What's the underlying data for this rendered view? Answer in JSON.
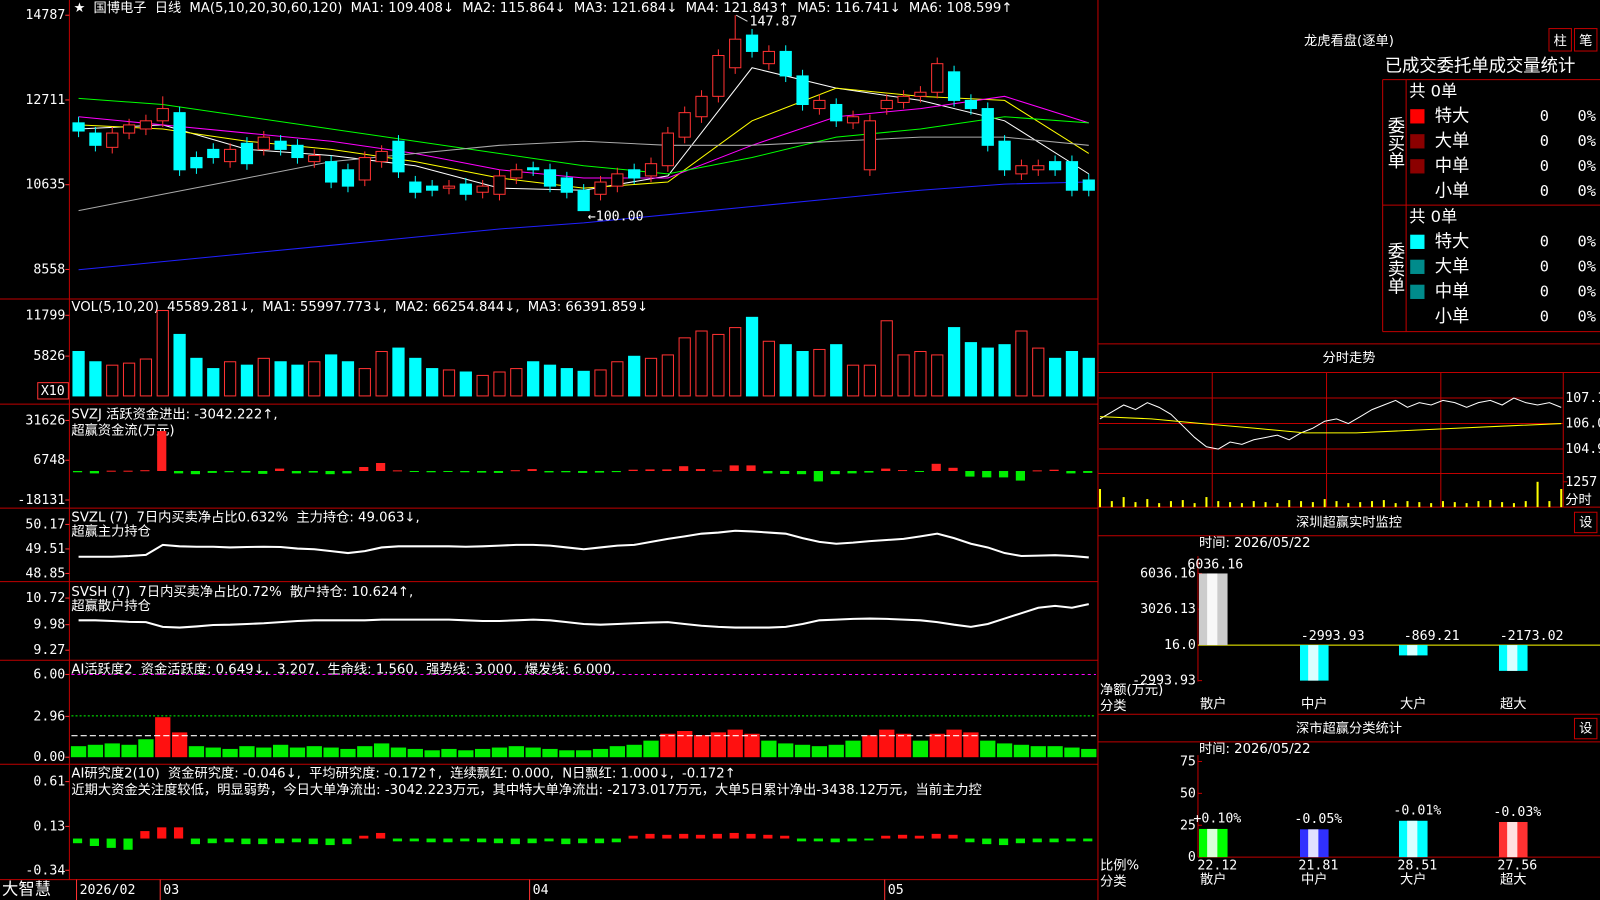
{
  "header": {
    "items": [
      {
        "text": "★",
        "color": "#ffffff"
      },
      {
        "text": "国博电子",
        "color": "#ffffff"
      },
      {
        "text": "日线",
        "color": "#ff3232"
      },
      {
        "text": "MA(5,10,20,30,60,120)",
        "color": "#ffffff"
      },
      {
        "text": "MA1: 109.408↓",
        "color": "#ffffff"
      },
      {
        "text": "MA2: 115.864↓",
        "color": "#ffff00"
      },
      {
        "text": "MA3: 121.684↓",
        "color": "#ff00ff"
      },
      {
        "text": "MA4: 121.843↑",
        "color": "#00ff00"
      },
      {
        "text": "MA5: 116.741↓",
        "color": "#dddddd"
      },
      {
        "text": "MA6: 108.599↑",
        "color": "#3030ff"
      }
    ]
  },
  "main": {
    "ylim": [
      7860,
      15160
    ],
    "yticks": [
      14787,
      12711,
      10635,
      8558
    ],
    "up_color": "#ff3232",
    "down_color": "#00ffff",
    "open": [
      12150,
      11900,
      11550,
      11900,
      12000,
      12200,
      12400,
      11300,
      11500,
      11200,
      11650,
      11500,
      11700,
      11600,
      11200,
      11200,
      11000,
      10750,
      11200,
      11700,
      10700,
      10600,
      10550,
      10650,
      10450,
      10400,
      10800,
      11050,
      11000,
      10800,
      10500,
      10400,
      10600,
      11000,
      10850,
      11100,
      11800,
      12300,
      12800,
      13500,
      14300,
      13600,
      13900,
      13300,
      12500,
      12600,
      12150,
      11000,
      12500,
      12650,
      12800,
      12900,
      13400,
      12700,
      12500,
      11700,
      10900,
      11000,
      11200,
      11200,
      10750
    ],
    "close": [
      11950,
      11600,
      11900,
      12100,
      12200,
      12500,
      11000,
      11050,
      11300,
      11500,
      11150,
      11800,
      11500,
      11300,
      11350,
      10700,
      10600,
      11300,
      11450,
      10950,
      10450,
      10500,
      10600,
      10400,
      10600,
      10850,
      11000,
      11000,
      10600,
      10450,
      10000,
      10700,
      10900,
      10800,
      11150,
      11900,
      12400,
      12800,
      13800,
      14200,
      13900,
      13900,
      13300,
      12600,
      12700,
      12200,
      12300,
      12200,
      12700,
      12800,
      12900,
      13600,
      12700,
      12500,
      11600,
      11000,
      11100,
      11100,
      11000,
      10500,
      10500
    ],
    "high": [
      12300,
      12050,
      12050,
      12250,
      12350,
      12800,
      12550,
      11450,
      11650,
      11650,
      11800,
      11950,
      11850,
      11750,
      11500,
      11350,
      11150,
      11450,
      11600,
      11850,
      10850,
      10750,
      10750,
      10800,
      10750,
      11000,
      11150,
      11200,
      11150,
      10950,
      10650,
      10850,
      11050,
      11150,
      11300,
      12050,
      12550,
      12950,
      13950,
      14787,
      14450,
      14050,
      14050,
      13450,
      12850,
      12750,
      12450,
      12350,
      12850,
      12950,
      13050,
      13750,
      13550,
      12850,
      12650,
      11850,
      11250,
      11250,
      11350,
      11350,
      10900
    ],
    "low": [
      11800,
      11450,
      11400,
      11750,
      11850,
      12050,
      10850,
      10900,
      11150,
      11050,
      11000,
      11350,
      11350,
      11150,
      11050,
      10550,
      10450,
      10600,
      11050,
      10800,
      10300,
      10350,
      10400,
      10250,
      10300,
      10250,
      10650,
      10850,
      10450,
      10300,
      10000,
      10250,
      10450,
      10650,
      10700,
      10950,
      11650,
      12150,
      12650,
      13350,
      13750,
      13450,
      13150,
      12450,
      12350,
      12050,
      12000,
      10850,
      12350,
      12500,
      12650,
      12750,
      12550,
      12350,
      11450,
      10850,
      10750,
      10850,
      10850,
      10350,
      10350
    ],
    "high_label": "147.87",
    "low_label": "←100.00",
    "ma_x": [
      0,
      5,
      10,
      15,
      20,
      25,
      30,
      35,
      40,
      45,
      50,
      55,
      60
    ],
    "ma_lines": [
      {
        "color": "#ffffff",
        "values": [
          12000,
          12100,
          11500,
          11350,
          11100,
          10550,
          10500,
          10850,
          13500,
          13000,
          12700,
          12200,
          10900
        ]
      },
      {
        "color": "#ffff00",
        "values": [
          12100,
          12000,
          11700,
          11500,
          11200,
          10800,
          10550,
          10700,
          12200,
          13000,
          12800,
          12700,
          11400
        ]
      },
      {
        "color": "#ff00ff",
        "values": [
          12300,
          12100,
          11900,
          11700,
          11400,
          11000,
          10800,
          10800,
          11600,
          12300,
          12500,
          12800,
          12150
        ]
      },
      {
        "color": "#00ff00",
        "values": [
          12750,
          12600,
          12300,
          12000,
          11700,
          11400,
          11100,
          10900,
          11300,
          11800,
          12000,
          12300,
          12150
        ]
      },
      {
        "color": "#aaaaaa",
        "values": [
          10000,
          10400,
          10800,
          11200,
          11400,
          11600,
          11700,
          11600,
          11600,
          11700,
          11800,
          11800,
          11600
        ]
      },
      {
        "color": "#2020ff",
        "values": [
          8550,
          8750,
          8950,
          9150,
          9350,
          9550,
          9700,
          9900,
          10100,
          10300,
          10500,
          10650,
          10700
        ]
      }
    ],
    "x_labels": [
      "2026/02",
      "03",
      "04",
      "05"
    ],
    "brand": "大智慧"
  },
  "volume": {
    "ylim": [
      0,
      13890
    ],
    "yticks": [
      11799,
      5826
    ],
    "unit": "X10",
    "legend": [
      {
        "text": "VOL(5,10,20)",
        "color": "#ffffff"
      },
      {
        "text": "45589.281↓,",
        "color": "#ffffff"
      },
      {
        "text": "MA1: 55997.773↓,",
        "color": "#ffff00"
      },
      {
        "text": "MA2: 66254.844↓,",
        "color": "#ff00ff"
      },
      {
        "text": "MA3: 66391.859↓",
        "color": "#00ff00"
      }
    ],
    "values": [
      6500,
      5000,
      4500,
      4800,
      5400,
      12500,
      9000,
      5500,
      4000,
      5000,
      4500,
      5500,
      5000,
      4500,
      5000,
      6000,
      5000,
      4000,
      6500,
      7000,
      5500,
      4000,
      3800,
      3500,
      3000,
      3500,
      4000,
      5000,
      4500,
      4000,
      3600,
      3800,
      5000,
      5800,
      5500,
      6000,
      8500,
      9500,
      9000,
      10000,
      11500,
      8000,
      7500,
      6500,
      6800,
      7500,
      4500,
      4500,
      11000,
      6000,
      6500,
      6000,
      10000,
      7800,
      7000,
      7500,
      9500,
      7000,
      5500,
      6500,
      5500
    ]
  },
  "svzj": {
    "ylim": [
      -22600,
      40560
    ],
    "yticks": [
      31626,
      6748,
      -18131
    ],
    "legend": [
      {
        "text": "SVZJ  活跃资金进出: -3042.222↑,",
        "color": "#ffffff"
      }
    ],
    "legend2": [
      {
        "text": "超赢资金流(万元)",
        "color": "#ffff00"
      }
    ],
    "values": [
      -800,
      -1500,
      200,
      200,
      500,
      25000,
      -1500,
      -2000,
      -1200,
      -800,
      -1000,
      -1800,
      1500,
      -1500,
      -1000,
      -2000,
      -1500,
      2500,
      5000,
      400,
      -300,
      -800,
      -600,
      -800,
      -1000,
      -1200,
      500,
      1200,
      -900,
      -800,
      -1200,
      -1000,
      -700,
      800,
      1000,
      1000,
      3000,
      1200,
      400,
      3500,
      3500,
      -1500,
      -1800,
      -2000,
      -6500,
      -2000,
      -1500,
      -1000,
      1500,
      600,
      -300,
      4500,
      2000,
      -3500,
      -4000,
      -4000,
      -6000,
      400,
      800,
      -1500,
      -1200
    ]
  },
  "svzl": {
    "ylim": [
      48.63,
      50.58
    ],
    "yticks": [
      50.17,
      49.51,
      48.85
    ],
    "legend": [
      {
        "text": "SVZL (7)",
        "color": "#ffffff"
      },
      {
        "text": "7日内买卖净占比0.632%",
        "color": "#00ff00"
      },
      {
        "text": "主力持仓: 49.063↓,",
        "color": "#ffffff"
      }
    ],
    "legend2": [
      {
        "text": "超赢主力持仓",
        "color": "#ffff00"
      }
    ],
    "values": [
      49.3,
      49.3,
      49.3,
      49.32,
      49.35,
      49.62,
      49.58,
      49.57,
      49.57,
      49.55,
      49.56,
      49.57,
      49.56,
      49.52,
      49.5,
      49.45,
      49.4,
      49.45,
      49.55,
      49.58,
      49.58,
      49.58,
      49.58,
      49.57,
      49.58,
      49.6,
      49.62,
      49.62,
      49.6,
      49.55,
      49.5,
      49.55,
      49.6,
      49.62,
      49.7,
      49.78,
      49.85,
      49.92,
      49.95,
      50.0,
      49.98,
      49.95,
      49.92,
      49.8,
      49.7,
      49.65,
      49.68,
      49.72,
      49.75,
      49.78,
      49.85,
      49.92,
      49.8,
      49.65,
      49.55,
      49.4,
      49.32,
      49.33,
      49.34,
      49.32,
      49.28
    ]
  },
  "svsh": {
    "ylim": [
      9.02,
      11.12
    ],
    "yticks": [
      10.72,
      9.98,
      9.27
    ],
    "legend": [
      {
        "text": "SVSH (7)",
        "color": "#ffffff"
      },
      {
        "text": "7日内买卖净占比0.72%",
        "color": "#ff3232"
      },
      {
        "text": "散户持仓: 10.624↑,",
        "color": "#ffffff"
      }
    ],
    "legend2": [
      {
        "text": "超赢散户持仓",
        "color": "#ffff00"
      }
    ],
    "values": [
      10.1,
      10.1,
      10.08,
      10.06,
      10.05,
      9.92,
      9.9,
      9.93,
      9.97,
      9.98,
      10.0,
      10.02,
      10.05,
      10.08,
      10.1,
      10.1,
      10.1,
      10.1,
      10.12,
      10.12,
      10.12,
      10.12,
      10.12,
      10.1,
      10.08,
      10.08,
      10.1,
      10.12,
      10.1,
      10.05,
      10.0,
      9.98,
      10.0,
      10.02,
      10.04,
      10.05,
      10.0,
      9.95,
      9.92,
      9.9,
      9.9,
      9.9,
      9.92,
      10.0,
      10.1,
      10.12,
      10.14,
      10.15,
      10.14,
      10.12,
      10.1,
      10.05,
      9.98,
      9.92,
      10.0,
      10.15,
      10.3,
      10.45,
      10.5,
      10.45,
      10.55
    ]
  },
  "ai_activity": {
    "ylim": [
      -0.44,
      6.96
    ],
    "yticks": [
      {
        "value": 6,
        "label": "6.00"
      },
      2.96,
      {
        "value": 0,
        "label": "0.00"
      }
    ],
    "legend": [
      {
        "text": "AI活跃度2",
        "color": "#ffffff"
      },
      {
        "text": "资金活跃度: 0.649↓,",
        "color": "#ffffff"
      },
      {
        "text": "3.207,",
        "color": "#ffffff"
      },
      {
        "text": "生命线: 1.560,",
        "color": "#ffffff",
        "value": 1.56
      },
      {
        "text": "强势线: 3.000,",
        "color": "#ff3232",
        "value": 3
      },
      {
        "text": "爆发线: 6.000,",
        "color": "#ff00ff",
        "value": 6
      }
    ],
    "values": [
      0.8,
      0.9,
      1.0,
      0.9,
      1.3,
      2.9,
      1.8,
      0.8,
      0.7,
      0.6,
      0.8,
      0.7,
      0.9,
      0.7,
      0.8,
      0.7,
      0.6,
      0.8,
      1.0,
      0.7,
      0.6,
      0.5,
      0.6,
      0.5,
      0.6,
      0.7,
      0.8,
      0.7,
      0.6,
      0.5,
      0.5,
      0.6,
      0.8,
      0.9,
      1.2,
      1.7,
      1.9,
      1.6,
      1.8,
      2.0,
      1.7,
      1.2,
      1.0,
      0.9,
      0.8,
      0.9,
      1.2,
      1.6,
      2.0,
      1.7,
      1.2,
      1.7,
      2.0,
      1.8,
      1.2,
      1.0,
      0.9,
      0.8,
      0.8,
      0.7,
      0.6
    ]
  },
  "ai_research": {
    "ylim": [
      -0.44,
      0.785
    ],
    "yticks": [
      0.61,
      0.13,
      -0.34
    ],
    "legend": [
      {
        "text": "AI研究度2(10)",
        "color": "#ffffff"
      },
      {
        "text": "资金研究度: -0.046↓,",
        "color": "#ffffff"
      },
      {
        "text": "平均研究度: -0.172↑,",
        "color": "#ffff00"
      },
      {
        "text": "连续飘红: 0.000,",
        "color": "#ff00ff"
      },
      {
        "text": "N日飘红: 1.000↓,",
        "color": "#ffffff"
      },
      {
        "text": "-0.172↑",
        "color": "#3030ff"
      }
    ],
    "legend2": [
      {
        "text": "近期大资金关注度较低，明显弱势，今日大单净流出: -3042.223万元，其中特大单净流出: -2173.017万元，大单5日累计净出-3438.12万元，当前主力控",
        "color": "#ffffff"
      }
    ],
    "values": [
      -0.05,
      -0.08,
      -0.1,
      -0.12,
      0.08,
      0.12,
      0.12,
      -0.06,
      -0.05,
      -0.04,
      -0.06,
      -0.06,
      -0.05,
      -0.04,
      -0.06,
      -0.07,
      -0.06,
      0.03,
      0.06,
      -0.03,
      -0.03,
      -0.04,
      -0.04,
      -0.03,
      -0.04,
      -0.05,
      -0.06,
      -0.05,
      -0.03,
      -0.06,
      -0.05,
      -0.05,
      -0.04,
      0.03,
      0.05,
      0.04,
      0.05,
      0.04,
      0.05,
      0.06,
      0.05,
      0.04,
      0.03,
      -0.03,
      -0.03,
      -0.04,
      -0.03,
      -0.02,
      0.03,
      0.04,
      0.03,
      0.05,
      0.04,
      -0.04,
      -0.06,
      -0.07,
      -0.05,
      -0.04,
      -0.04,
      -0.03,
      -0.03
    ]
  },
  "dragon": {
    "title": "龙虎看盘(逐单)",
    "buttons": [
      "柱",
      "笔"
    ],
    "subtitle": "已成交委托单成交量统计",
    "groups": [
      {
        "label": "委买单",
        "total": "共 0单",
        "rows": [
          {
            "name": "特大",
            "color": "#ff0000",
            "count": "0",
            "pct": "0%"
          },
          {
            "name": "大单",
            "color": "#8b0000",
            "count": "0",
            "pct": "0%"
          },
          {
            "name": "中单",
            "color": "#8b0000",
            "count": "0",
            "pct": "0%"
          },
          {
            "name": "小单",
            "color": "",
            "count": "0",
            "pct": "0%"
          }
        ]
      },
      {
        "label": "委卖单",
        "total": "共 0单",
        "rows": [
          {
            "name": "特大",
            "color": "#00ffff",
            "count": "0",
            "pct": "0%"
          },
          {
            "name": "大单",
            "color": "#008b8b",
            "count": "0",
            "pct": "0%"
          },
          {
            "name": "中单",
            "color": "#008b8b",
            "count": "0",
            "pct": "0%"
          },
          {
            "name": "小单",
            "color": "",
            "count": "0",
            "pct": "0%"
          }
        ]
      }
    ]
  },
  "intraday": {
    "title": "分时走势",
    "ylim": [
      103.89,
      108.16
    ],
    "yticks": [
      107.1,
      {
        "value": 106,
        "label": "106.0"
      },
      104.9
    ],
    "price": [
      106.2,
      106.5,
      106.8,
      106.6,
      106.9,
      106.7,
      106.4,
      105.9,
      105.4,
      105.0,
      104.9,
      105.2,
      105.1,
      105.3,
      105.4,
      105.5,
      105.3,
      105.6,
      105.8,
      106.1,
      106.2,
      106.0,
      106.3,
      106.6,
      106.8,
      107.0,
      106.7,
      106.9,
      106.8,
      107.0,
      106.9,
      106.7,
      106.9,
      107.0,
      106.8,
      107.1,
      106.9,
      106.8,
      106.9,
      106.7
    ],
    "average": [
      106.3,
      106.2,
      106.0,
      105.8,
      105.6,
      105.6,
      105.7,
      105.8,
      105.9,
      106.0
    ],
    "vol_ylim": [
      0,
      1620
    ],
    "vol_ticks": [
      1257
    ],
    "vol_label": "分时",
    "volume": [
      900,
      300,
      500,
      250,
      400,
      200,
      300,
      350,
      200,
      500,
      300,
      250,
      200,
      300,
      250,
      200,
      350,
      300,
      250,
      400,
      300,
      200,
      250,
      300,
      350,
      200,
      300,
      250,
      200,
      300,
      250,
      200,
      300,
      350,
      250,
      200,
      300,
      1257,
      300,
      900
    ]
  },
  "monitor": {
    "title": "深圳超赢实时监控",
    "button": "设",
    "time": "时间: 2026/05/22",
    "ylim": [
      -3080,
      7498
    ],
    "yticks": [
      6036.16,
      3026.13,
      {
        "value": 16,
        "label": "16.0"
      },
      -2993.93
    ],
    "ylabel": "净额(万元)",
    "xlabel": "分类",
    "categories": [
      "散户",
      "中户",
      "大户",
      "超大"
    ],
    "values": [
      6036.16,
      -2993.93,
      -869.21,
      -2173.02
    ],
    "colors": [
      "#cccccc",
      "#00ffff",
      "#00ffff",
      "#00ffff"
    ]
  },
  "classify": {
    "title": "深市超赢分类统计",
    "button": "设",
    "time": "时间: 2026/05/22",
    "ylim": [
      0,
      80
    ],
    "yticks": [
      0,
      25,
      50,
      75
    ],
    "ylabel": "比例%",
    "xlabel": "分类",
    "categories": [
      "散户",
      "中户",
      "大户",
      "超大"
    ],
    "values": [
      22.12,
      21.81,
      28.51,
      27.56
    ],
    "colors": [
      "#00ff00",
      "#3030ff",
      "#00ffff",
      "#ff3232"
    ],
    "changes": [
      "+0.10%",
      "-0.05%",
      "-0.01%",
      "-0.03%"
    ]
  }
}
